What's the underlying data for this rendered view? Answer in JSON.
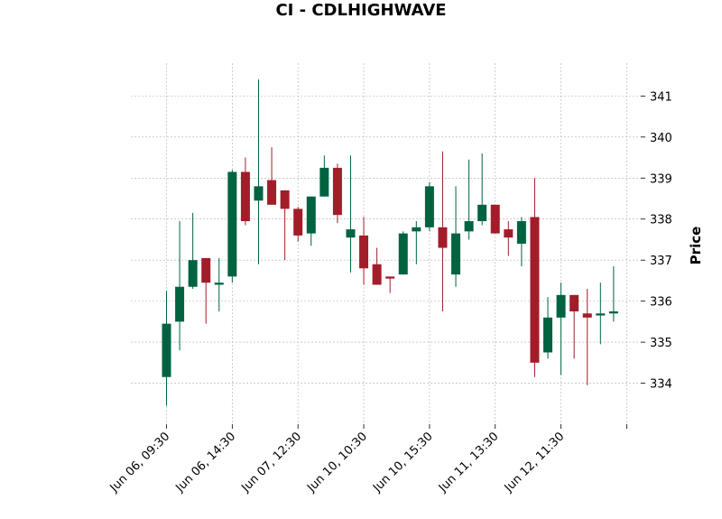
{
  "chart_data": {
    "type": "candlestick",
    "title": "CI - CDLHIGHWAVE",
    "ylabel": "Price",
    "y_axis_position": "right",
    "ylim": [
      333.0,
      341.8
    ],
    "yticks": [
      334,
      335,
      336,
      337,
      338,
      339,
      340,
      341
    ],
    "grid": true,
    "colors": {
      "up": "#006340",
      "down": "#a21d2a",
      "grid": "#b0b0b0"
    },
    "x_ticks": [
      {
        "index": 0,
        "label": "Jun 06, 09:30"
      },
      {
        "index": 5,
        "label": "Jun 06, 14:30"
      },
      {
        "index": 10,
        "label": "Jun 07, 12:30"
      },
      {
        "index": 15,
        "label": "Jun 10, 10:30"
      },
      {
        "index": 20,
        "label": "Jun 10, 15:30"
      },
      {
        "index": 25,
        "label": "Jun 11, 13:30"
      },
      {
        "index": 30,
        "label": "Jun 12, 11:30"
      },
      {
        "index": 35,
        "label": ""
      }
    ],
    "candles": [
      {
        "o": 334.15,
        "h": 336.25,
        "l": 333.45,
        "c": 335.45
      },
      {
        "o": 335.5,
        "h": 337.95,
        "l": 334.8,
        "c": 336.35
      },
      {
        "o": 336.35,
        "h": 338.15,
        "l": 336.3,
        "c": 337.0
      },
      {
        "o": 337.05,
        "h": 337.05,
        "l": 335.45,
        "c": 336.45
      },
      {
        "o": 336.4,
        "h": 337.05,
        "l": 335.75,
        "c": 336.45
      },
      {
        "o": 336.6,
        "h": 339.2,
        "l": 336.45,
        "c": 339.15
      },
      {
        "o": 339.15,
        "h": 339.5,
        "l": 337.85,
        "c": 337.95
      },
      {
        "o": 338.45,
        "h": 341.4,
        "l": 336.9,
        "c": 338.8
      },
      {
        "o": 338.95,
        "h": 339.75,
        "l": 338.35,
        "c": 338.35
      },
      {
        "o": 338.7,
        "h": 338.7,
        "l": 337.0,
        "c": 338.25
      },
      {
        "o": 338.25,
        "h": 338.3,
        "l": 337.45,
        "c": 337.6
      },
      {
        "o": 337.65,
        "h": 338.55,
        "l": 337.35,
        "c": 338.55
      },
      {
        "o": 338.55,
        "h": 339.55,
        "l": 338.55,
        "c": 339.25
      },
      {
        "o": 339.25,
        "h": 339.35,
        "l": 337.9,
        "c": 338.1
      },
      {
        "o": 337.55,
        "h": 339.55,
        "l": 336.7,
        "c": 337.75
      },
      {
        "o": 337.6,
        "h": 338.05,
        "l": 336.4,
        "c": 336.8
      },
      {
        "o": 336.9,
        "h": 337.3,
        "l": 336.4,
        "c": 336.4
      },
      {
        "o": 336.6,
        "h": 336.6,
        "l": 336.2,
        "c": 336.55
      },
      {
        "o": 336.65,
        "h": 337.7,
        "l": 336.65,
        "c": 337.65
      },
      {
        "o": 337.7,
        "h": 337.95,
        "l": 336.9,
        "c": 337.8
      },
      {
        "o": 337.8,
        "h": 338.9,
        "l": 337.7,
        "c": 338.8
      },
      {
        "o": 337.8,
        "h": 339.65,
        "l": 335.75,
        "c": 337.3
      },
      {
        "o": 336.65,
        "h": 338.8,
        "l": 336.35,
        "c": 337.65
      },
      {
        "o": 337.7,
        "h": 339.45,
        "l": 337.5,
        "c": 337.95
      },
      {
        "o": 337.95,
        "h": 339.6,
        "l": 337.85,
        "c": 338.35
      },
      {
        "o": 338.35,
        "h": 338.35,
        "l": 337.65,
        "c": 337.65
      },
      {
        "o": 337.75,
        "h": 337.95,
        "l": 337.1,
        "c": 337.55
      },
      {
        "o": 337.4,
        "h": 338.05,
        "l": 336.85,
        "c": 337.95
      },
      {
        "o": 338.05,
        "h": 339.0,
        "l": 334.15,
        "c": 334.5
      },
      {
        "o": 334.75,
        "h": 336.1,
        "l": 334.6,
        "c": 335.6
      },
      {
        "o": 335.6,
        "h": 336.45,
        "l": 334.2,
        "c": 336.15
      },
      {
        "o": 336.15,
        "h": 336.15,
        "l": 334.6,
        "c": 335.75
      },
      {
        "o": 335.7,
        "h": 336.3,
        "l": 333.95,
        "c": 335.6
      },
      {
        "o": 335.65,
        "h": 336.45,
        "l": 334.95,
        "c": 335.7
      },
      {
        "o": 335.7,
        "h": 336.85,
        "l": 335.5,
        "c": 335.75
      }
    ]
  }
}
